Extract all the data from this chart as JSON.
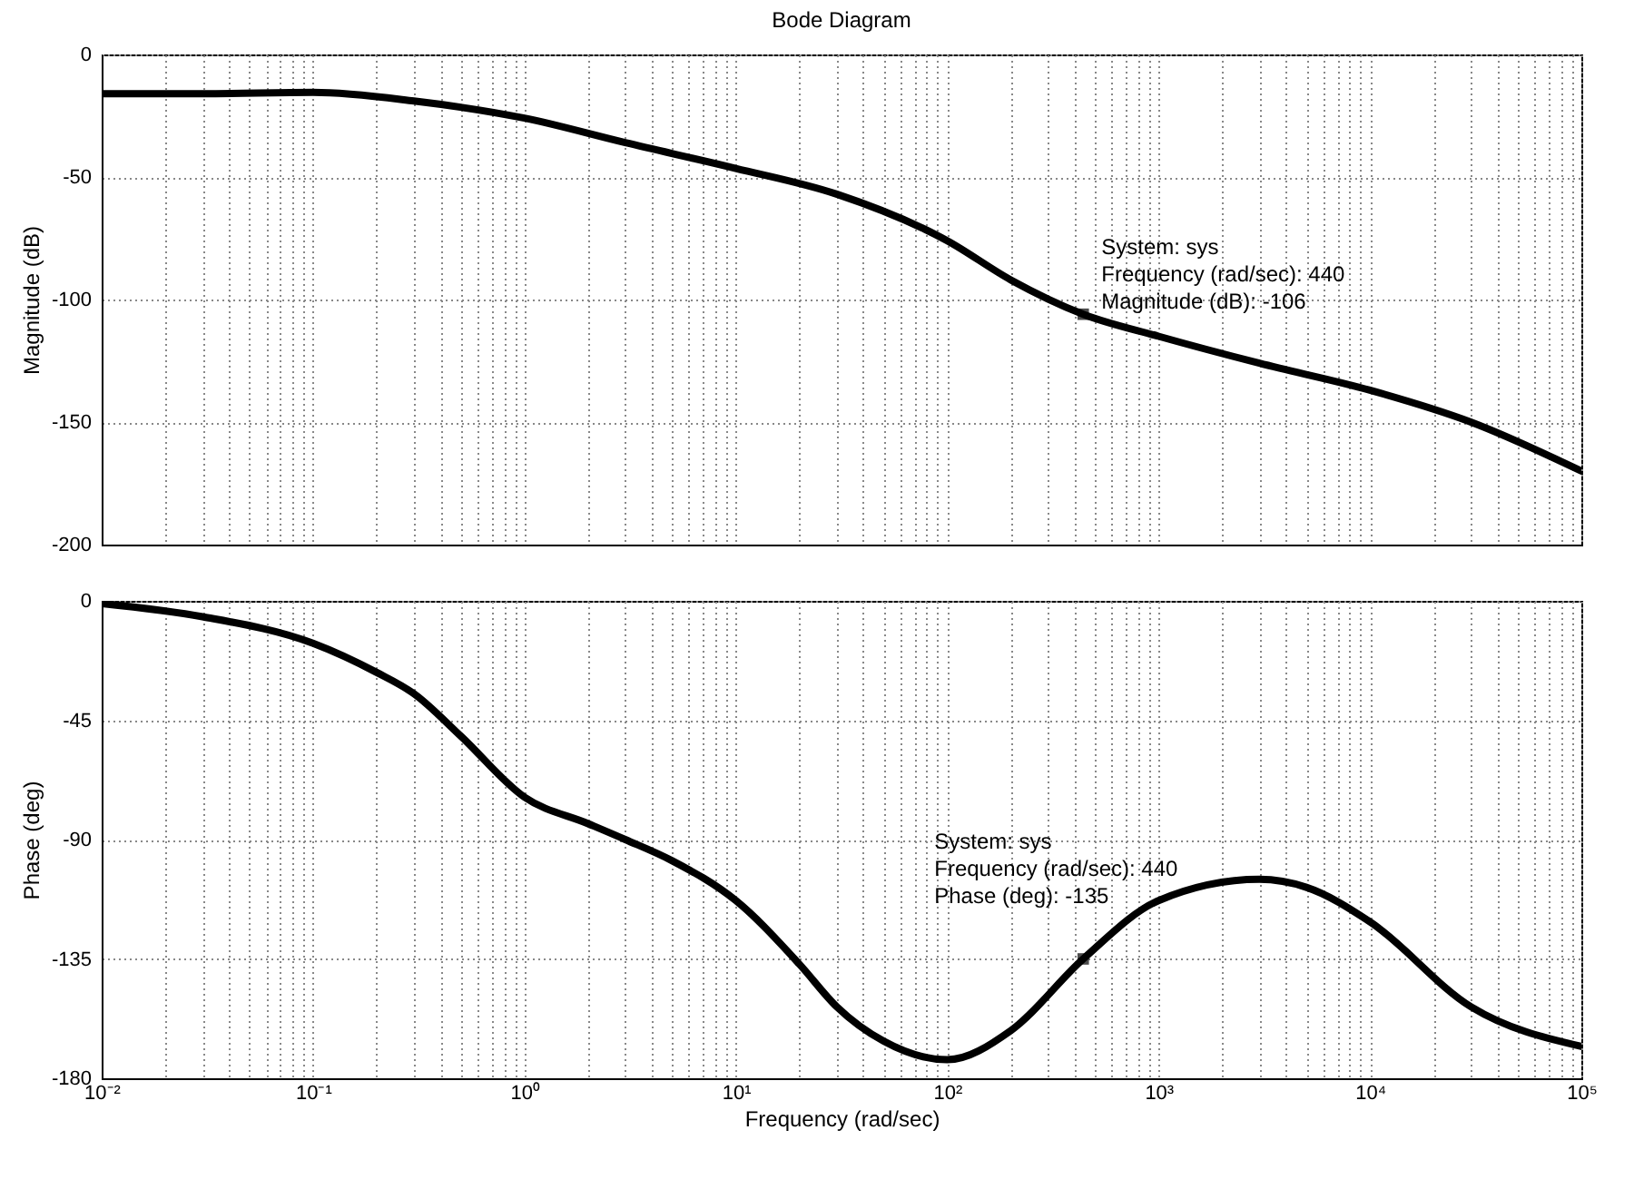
{
  "chart_data": [
    {
      "type": "line",
      "title": "Bode Diagram",
      "ylabel": "Magnitude (dB)",
      "log": "x",
      "grid": true,
      "tick_labels": "y",
      "line_style": "solid",
      "color": "#000000",
      "x": [
        0.01,
        0.03,
        0.1,
        0.3,
        1,
        3,
        10,
        30,
        100,
        200,
        440,
        1000,
        3000,
        10000,
        30000,
        100000
      ],
      "values": [
        -16,
        -16,
        -15.5,
        -19,
        -26,
        -36,
        -46.5,
        -57,
        -76,
        -92,
        -106,
        -115,
        -126,
        -137,
        -150,
        -170
      ],
      "xlim": [
        0.01,
        100000
      ],
      "ylim": [
        -200,
        0
      ],
      "yticks": [
        0,
        -50,
        -100,
        -150,
        -200
      ],
      "xticks": [
        {
          "value": 0.01,
          "label": null
        },
        {
          "value": 0.1,
          "label": null
        },
        {
          "value": 1,
          "label": null
        },
        {
          "value": 10,
          "label": null
        },
        {
          "value": 100,
          "label": null
        },
        {
          "value": 1000,
          "label": null
        },
        {
          "value": 10000,
          "label": null
        },
        {
          "value": 100000,
          "label": null
        },
        {
          "value": 0.02,
          "label": null
        },
        {
          "value": 0.03,
          "label": null
        },
        {
          "value": 0.04,
          "label": null
        },
        {
          "value": 0.05,
          "label": null
        },
        {
          "value": 0.06,
          "label": null
        },
        {
          "value": 0.07,
          "label": null
        },
        {
          "value": 0.08,
          "label": null
        },
        {
          "value": 0.09,
          "label": null
        },
        {
          "value": 0.2,
          "label": null
        },
        {
          "value": 0.3,
          "label": null
        },
        {
          "value": 0.4,
          "label": null
        },
        {
          "value": 0.5,
          "label": null
        },
        {
          "value": 0.6,
          "label": null
        },
        {
          "value": 0.7,
          "label": null
        },
        {
          "value": 0.8,
          "label": null
        },
        {
          "value": 0.9,
          "label": null
        },
        {
          "value": 2,
          "label": null
        },
        {
          "value": 3,
          "label": null
        },
        {
          "value": 4,
          "label": null
        },
        {
          "value": 5,
          "label": null
        },
        {
          "value": 6,
          "label": null
        },
        {
          "value": 7,
          "label": null
        },
        {
          "value": 8,
          "label": null
        },
        {
          "value": 9,
          "label": null
        },
        {
          "value": 20,
          "label": null
        },
        {
          "value": 30,
          "label": null
        },
        {
          "value": 40,
          "label": null
        },
        {
          "value": 50,
          "label": null
        },
        {
          "value": 60,
          "label": null
        },
        {
          "value": 70,
          "label": null
        },
        {
          "value": 80,
          "label": null
        },
        {
          "value": 90,
          "label": null
        },
        {
          "value": 200,
          "label": null
        },
        {
          "value": 300,
          "label": null
        },
        {
          "value": 400,
          "label": null
        },
        {
          "value": 500,
          "label": null
        },
        {
          "value": 600,
          "label": null
        },
        {
          "value": 700,
          "label": null
        },
        {
          "value": 800,
          "label": null
        },
        {
          "value": 900,
          "label": null
        },
        {
          "value": 2000,
          "label": null
        },
        {
          "value": 3000,
          "label": null
        },
        {
          "value": 4000,
          "label": null
        },
        {
          "value": 5000,
          "label": null
        },
        {
          "value": 6000,
          "label": null
        },
        {
          "value": 7000,
          "label": null
        },
        {
          "value": 8000,
          "label": null
        },
        {
          "value": 9000,
          "label": null
        },
        {
          "value": 20000,
          "label": null
        },
        {
          "value": 30000,
          "label": null
        },
        {
          "value": 40000,
          "label": null
        },
        {
          "value": 50000,
          "label": null
        },
        {
          "value": 60000,
          "label": null
        },
        {
          "value": 70000,
          "label": null
        },
        {
          "value": 80000,
          "label": null
        },
        {
          "value": 90000,
          "label": null
        }
      ],
      "annotations": [
        {
          "text": "System: sys\nFrequency (rad/sec): 440\nMagnitude (dB): -106",
          "x": 440,
          "y": -106
        }
      ]
    },
    {
      "type": "line",
      "xlabel": "Frequency (rad/sec)",
      "ylabel": "Phase (deg)",
      "log": "x",
      "grid": true,
      "line_style": "solid",
      "color": "#000000",
      "x": [
        0.01,
        0.03,
        0.1,
        0.2,
        0.3,
        0.5,
        1,
        2,
        3,
        5,
        10,
        20,
        30,
        50,
        100,
        200,
        440,
        1000,
        3000,
        5000,
        10000,
        30000,
        100000
      ],
      "values": [
        -1,
        -6,
        -16,
        -27,
        -35,
        -51,
        -74,
        -84,
        -90,
        -98,
        -113,
        -137,
        -153,
        -166,
        -173,
        -162,
        -135,
        -113,
        -105,
        -108,
        -121,
        -153,
        -168
      ],
      "xlim": [
        0.01,
        100000
      ],
      "ylim": [
        -180,
        0
      ],
      "yticks": [
        0,
        -45,
        -90,
        -135,
        -180
      ],
      "xticks": [
        {
          "value": 0.01,
          "label": "10⁻²"
        },
        {
          "value": 0.1,
          "label": "10⁻¹"
        },
        {
          "value": 1,
          "label": "10⁰"
        },
        {
          "value": 10,
          "label": "10¹"
        },
        {
          "value": 100,
          "label": "10²"
        },
        {
          "value": 1000,
          "label": "10³"
        },
        {
          "value": 10000,
          "label": "10⁴"
        },
        {
          "value": 100000,
          "label": "10⁵"
        },
        {
          "value": 0.02,
          "label": null
        },
        {
          "value": 0.03,
          "label": null
        },
        {
          "value": 0.04,
          "label": null
        },
        {
          "value": 0.05,
          "label": null
        },
        {
          "value": 0.06,
          "label": null
        },
        {
          "value": 0.07,
          "label": null
        },
        {
          "value": 0.08,
          "label": null
        },
        {
          "value": 0.09,
          "label": null
        },
        {
          "value": 0.2,
          "label": null
        },
        {
          "value": 0.3,
          "label": null
        },
        {
          "value": 0.4,
          "label": null
        },
        {
          "value": 0.5,
          "label": null
        },
        {
          "value": 0.6,
          "label": null
        },
        {
          "value": 0.7,
          "label": null
        },
        {
          "value": 0.8,
          "label": null
        },
        {
          "value": 0.9,
          "label": null
        },
        {
          "value": 2,
          "label": null
        },
        {
          "value": 3,
          "label": null
        },
        {
          "value": 4,
          "label": null
        },
        {
          "value": 5,
          "label": null
        },
        {
          "value": 6,
          "label": null
        },
        {
          "value": 7,
          "label": null
        },
        {
          "value": 8,
          "label": null
        },
        {
          "value": 9,
          "label": null
        },
        {
          "value": 20,
          "label": null
        },
        {
          "value": 30,
          "label": null
        },
        {
          "value": 40,
          "label": null
        },
        {
          "value": 50,
          "label": null
        },
        {
          "value": 60,
          "label": null
        },
        {
          "value": 70,
          "label": null
        },
        {
          "value": 80,
          "label": null
        },
        {
          "value": 90,
          "label": null
        },
        {
          "value": 200,
          "label": null
        },
        {
          "value": 300,
          "label": null
        },
        {
          "value": 400,
          "label": null
        },
        {
          "value": 500,
          "label": null
        },
        {
          "value": 600,
          "label": null
        },
        {
          "value": 700,
          "label": null
        },
        {
          "value": 800,
          "label": null
        },
        {
          "value": 900,
          "label": null
        },
        {
          "value": 2000,
          "label": null
        },
        {
          "value": 3000,
          "label": null
        },
        {
          "value": 4000,
          "label": null
        },
        {
          "value": 5000,
          "label": null
        },
        {
          "value": 6000,
          "label": null
        },
        {
          "value": 7000,
          "label": null
        },
        {
          "value": 8000,
          "label": null
        },
        {
          "value": 9000,
          "label": null
        },
        {
          "value": 20000,
          "label": null
        },
        {
          "value": 30000,
          "label": null
        },
        {
          "value": 40000,
          "label": null
        },
        {
          "value": 50000,
          "label": null
        },
        {
          "value": 60000,
          "label": null
        },
        {
          "value": 70000,
          "label": null
        },
        {
          "value": 80000,
          "label": null
        },
        {
          "value": 90000,
          "label": null
        }
      ],
      "annotations": [
        {
          "text": "System: sys\nFrequency (rad/sec): 440\nPhase (deg): -135",
          "x": 440,
          "y": -135
        }
      ]
    }
  ]
}
